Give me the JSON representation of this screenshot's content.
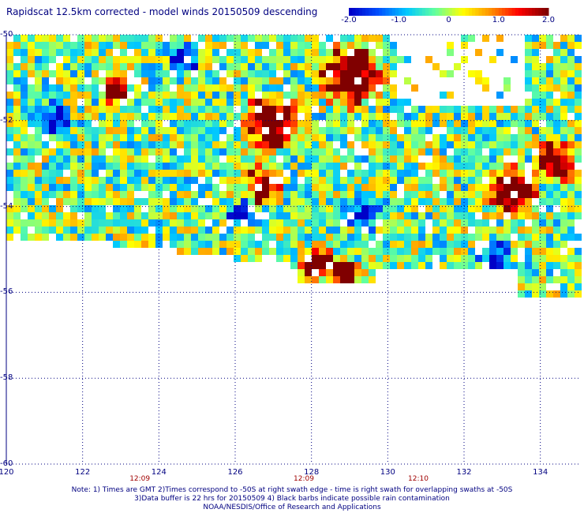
{
  "title": "Rapidscat 12.5km corrected - model winds 20150509 descending",
  "colorbar": {
    "labels": [
      "-2.0",
      "-1.0",
      "0",
      "1.0",
      "2.0"
    ],
    "values": [
      -2.0,
      -1.0,
      0,
      1.0,
      2.0
    ],
    "colors": [
      "#0000c8",
      "#0050ff",
      "#00c8ff",
      "#60ffa0",
      "#ffff00",
      "#ff9000",
      "#ff0000",
      "#800000"
    ]
  },
  "axes": {
    "x_ticks": [
      "120",
      "122",
      "124",
      "126",
      "128",
      "130",
      "132",
      "134"
    ],
    "y_ticks": [
      "-50",
      "-52",
      "-54",
      "-56",
      "-58",
      "-60"
    ],
    "x_range": [
      120,
      135
    ],
    "y_range": [
      -60,
      -50
    ],
    "grid": true
  },
  "times": [
    {
      "label": "12:09",
      "lon": 123.5
    },
    {
      "label": "12:09",
      "lon": 127.8
    },
    {
      "label": "12:10",
      "lon": 130.8
    }
  ],
  "notes": {
    "line1": "Note: 1) Times are GMT 2)Times correspond to -50S at right swath edge - time is right swath for overlapping swaths at -50S",
    "line2": "3)Data buffer is 22 hrs for 20150509 4) Black barbs indicate possible rain contamination",
    "line3": "NOAA/NESDIS/Office of Research and Applications"
  }
}
